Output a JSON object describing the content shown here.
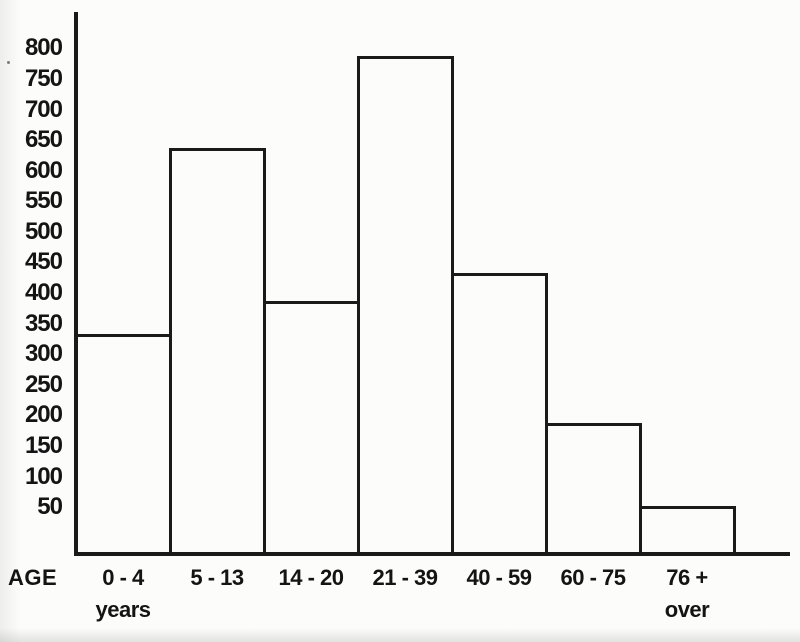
{
  "page": {
    "background_color": "#fcfcfb",
    "ink_color": "#1a1a1a"
  },
  "chart_data": {
    "type": "bar",
    "variant": "outlined-histogram-hand-drawn-scan",
    "x_axis_label": "AGE",
    "categories": [
      "0 - 4",
      "5 - 13",
      "14 - 20",
      "21 - 39",
      "40 - 59",
      "60 - 75",
      "76 +"
    ],
    "category_sublabels": [
      "years",
      "",
      "",
      "",
      "",
      "",
      "over"
    ],
    "values": [
      330,
      635,
      385,
      785,
      430,
      185,
      50
    ],
    "y_ticks": [
      800,
      750,
      700,
      650,
      600,
      550,
      500,
      450,
      400,
      350,
      300,
      250,
      200,
      150,
      100,
      50
    ],
    "ylim": [
      0,
      850
    ],
    "grid": false,
    "legend": "none",
    "bar_style": {
      "fill": "none",
      "stroke": "#1a1a1a"
    }
  }
}
